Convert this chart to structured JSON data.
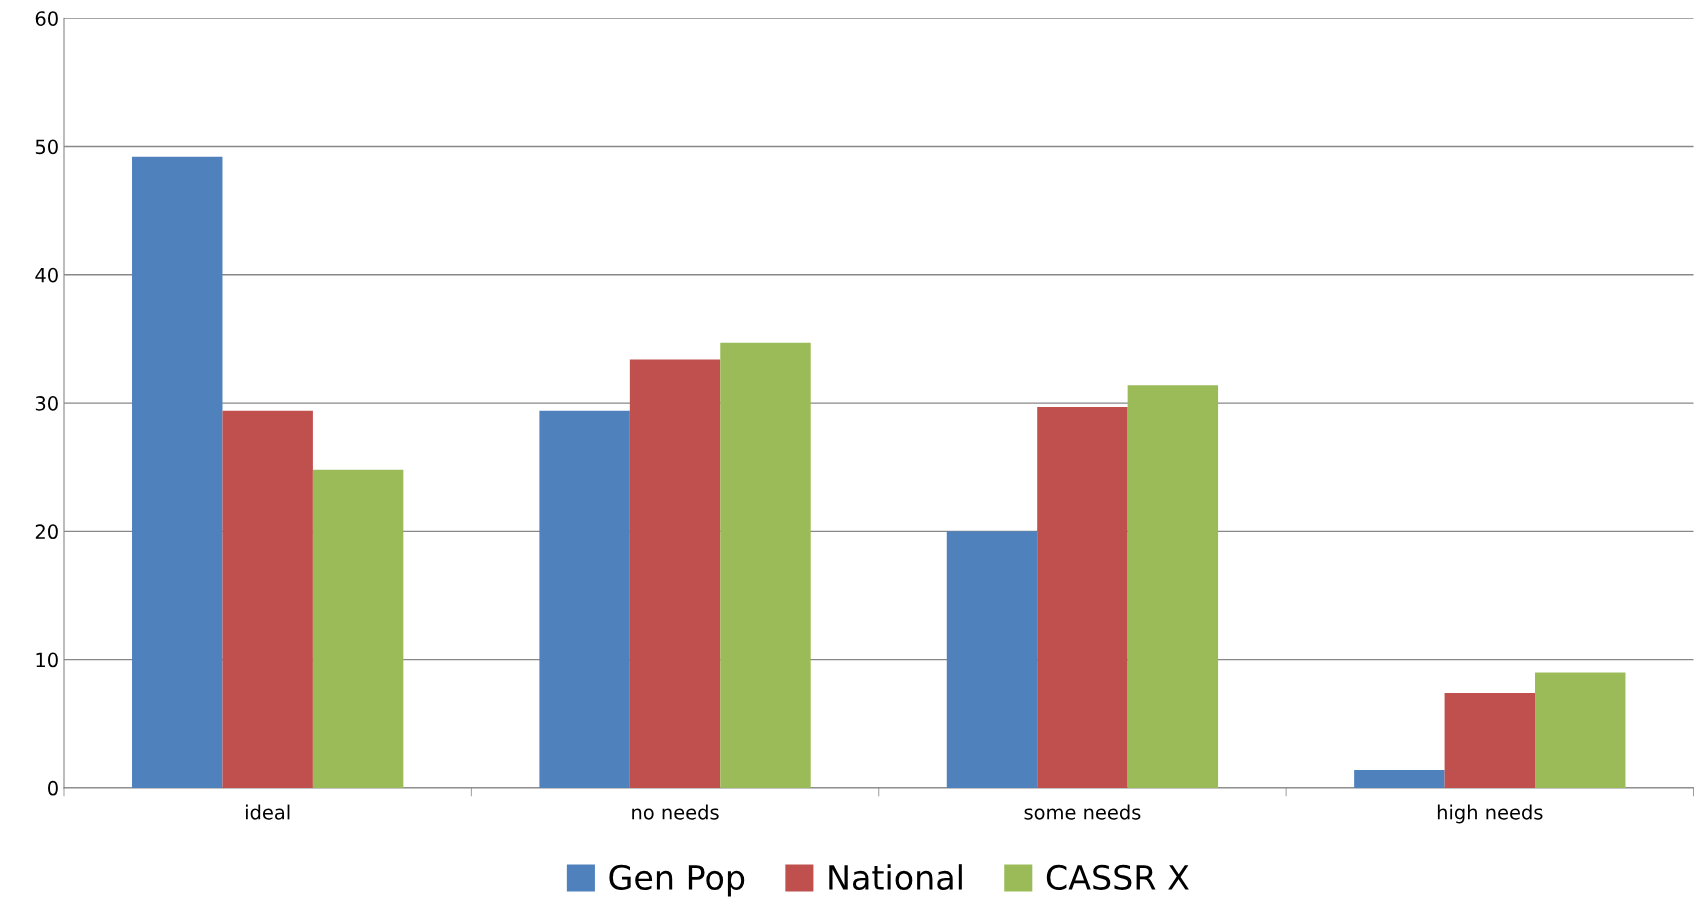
{
  "chart_data": {
    "type": "bar",
    "categories": [
      "ideal",
      "no needs",
      "some needs",
      "high needs"
    ],
    "series": [
      {
        "name": "Gen Pop",
        "color": "#4f81bd",
        "values": [
          49.2,
          29.4,
          20.0,
          1.4
        ]
      },
      {
        "name": "National",
        "color": "#c0504d",
        "values": [
          29.4,
          33.4,
          29.7,
          7.4
        ]
      },
      {
        "name": "CASSR X",
        "color": "#9bbb59",
        "values": [
          24.8,
          34.7,
          31.4,
          9.0
        ]
      }
    ],
    "ylim": [
      0,
      60
    ],
    "yticks": [
      0,
      10,
      20,
      30,
      40,
      50,
      60
    ],
    "grid": "y",
    "legend": "bottom"
  }
}
